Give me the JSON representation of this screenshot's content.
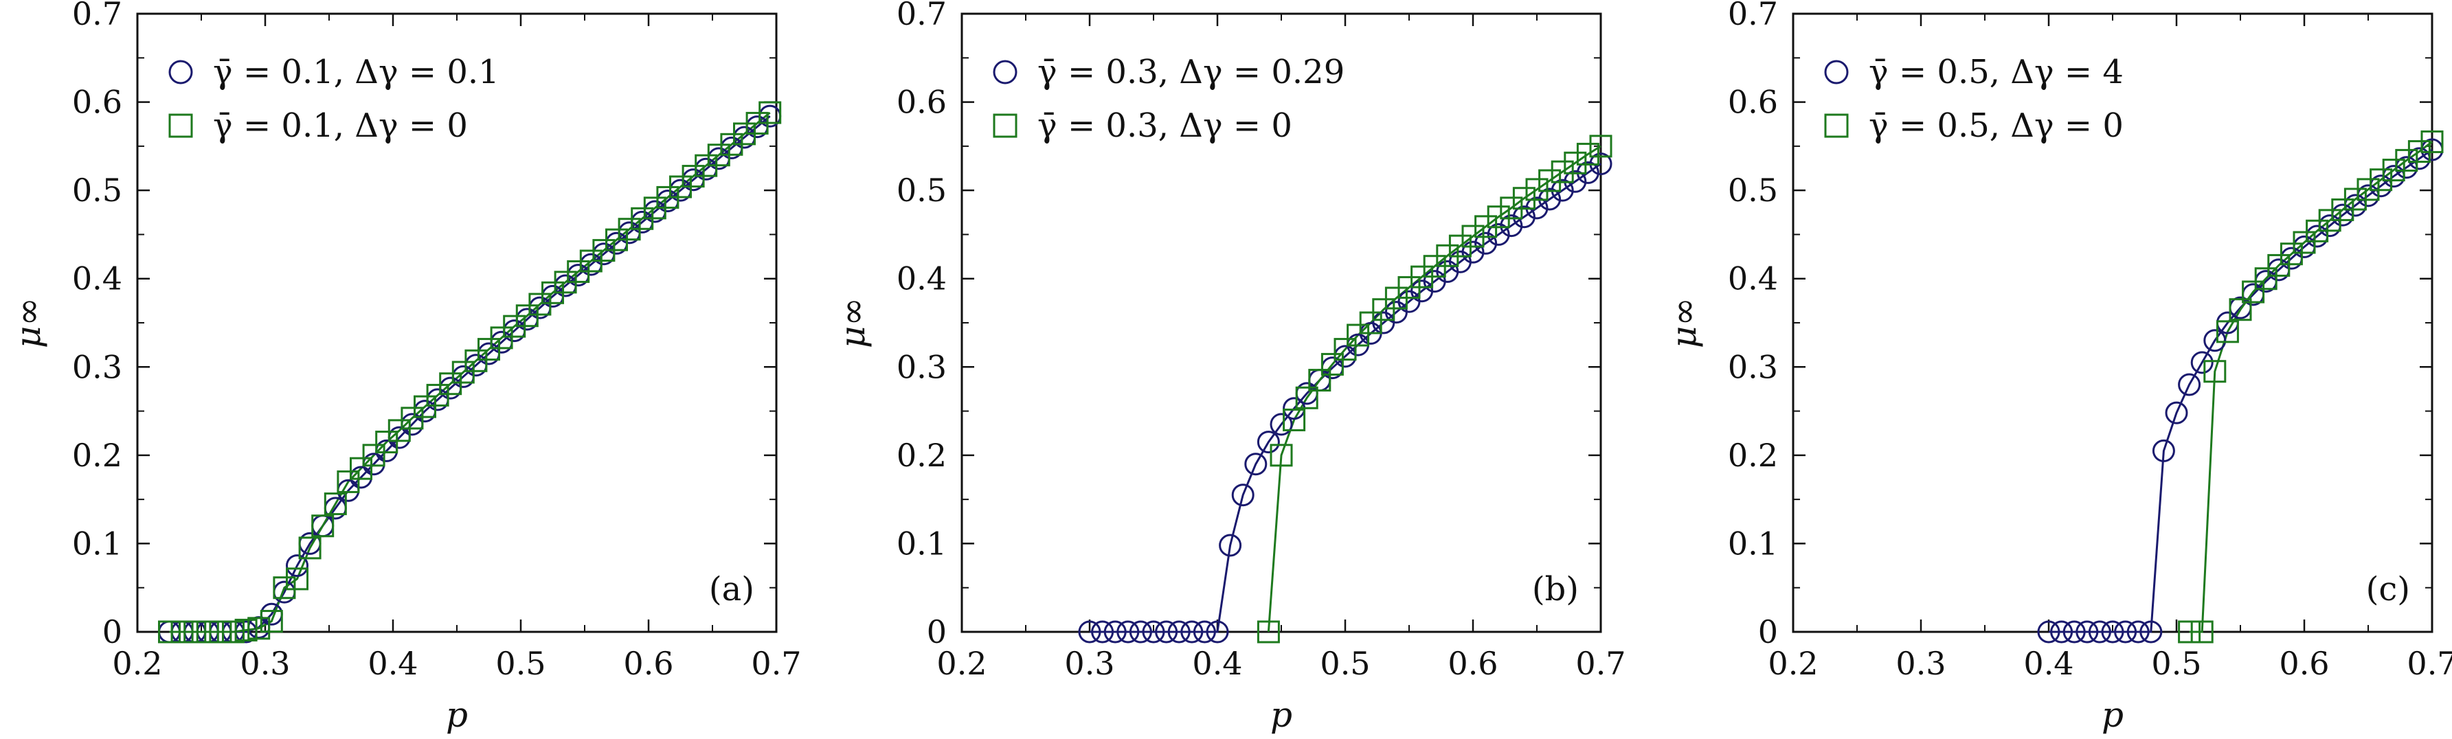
{
  "figure": {
    "series_styles": {
      "circle": {
        "marker": "circle",
        "color": "#1a1a6e"
      },
      "square": {
        "marker": "square",
        "color": "#1e7a1e"
      }
    }
  },
  "chart_data": [
    {
      "type": "scatter",
      "panel_label": "(a)",
      "xlabel": "p",
      "ylabel": "μ∞",
      "xlim": [
        0.2,
        0.7
      ],
      "ylim": [
        0,
        0.7
      ],
      "x_ticks": [
        0.2,
        0.3,
        0.4,
        0.5,
        0.6,
        0.7
      ],
      "x_tick_labels": [
        "0.2",
        "0.3",
        "0.4",
        "0.5",
        "0.6",
        "0.7"
      ],
      "y_ticks": [
        0,
        0.1,
        0.2,
        0.3,
        0.4,
        0.5,
        0.6,
        0.7
      ],
      "y_tick_labels": [
        "0",
        "0.1",
        "0.2",
        "0.3",
        "0.4",
        "0.5",
        "0.6",
        "0.7"
      ],
      "grid": false,
      "legend_position": "top-left",
      "series": [
        {
          "name": "γ̄ = 0.1,  Δγ = 0.1",
          "name_parts": {
            "gamma_bar": "γ̄",
            "gamma_value": "0.1",
            "delta": "Δγ",
            "delta_value": "0.1"
          },
          "marker": "circle",
          "color": "#1a1a6e",
          "x": [
            0.225,
            0.235,
            0.245,
            0.255,
            0.265,
            0.275,
            0.285,
            0.295,
            0.305,
            0.315,
            0.325,
            0.335,
            0.345,
            0.355,
            0.365,
            0.375,
            0.385,
            0.395,
            0.405,
            0.415,
            0.425,
            0.435,
            0.445,
            0.455,
            0.465,
            0.475,
            0.485,
            0.495,
            0.505,
            0.515,
            0.525,
            0.535,
            0.545,
            0.555,
            0.565,
            0.575,
            0.585,
            0.595,
            0.605,
            0.615,
            0.625,
            0.635,
            0.645,
            0.655,
            0.665,
            0.675,
            0.685,
            0.695
          ],
          "y": [
            0,
            0,
            0,
            0,
            0,
            0,
            0,
            0.005,
            0.02,
            0.045,
            0.075,
            0.1,
            0.12,
            0.14,
            0.16,
            0.175,
            0.19,
            0.205,
            0.22,
            0.235,
            0.25,
            0.263,
            0.276,
            0.289,
            0.302,
            0.315,
            0.328,
            0.341,
            0.354,
            0.367,
            0.38,
            0.392,
            0.404,
            0.416,
            0.428,
            0.44,
            0.452,
            0.464,
            0.476,
            0.488,
            0.5,
            0.512,
            0.524,
            0.536,
            0.548,
            0.56,
            0.572,
            0.584
          ]
        },
        {
          "name": "γ̄ = 0.1,  Δγ = 0",
          "name_parts": {
            "gamma_bar": "γ̄",
            "gamma_value": "0.1",
            "delta": "Δγ",
            "delta_value": "0"
          },
          "marker": "square",
          "color": "#1e7a1e",
          "x": [
            0.225,
            0.235,
            0.245,
            0.255,
            0.265,
            0.275,
            0.285,
            0.295,
            0.305,
            0.315,
            0.325,
            0.335,
            0.345,
            0.355,
            0.365,
            0.375,
            0.385,
            0.395,
            0.405,
            0.415,
            0.425,
            0.435,
            0.445,
            0.455,
            0.465,
            0.475,
            0.485,
            0.495,
            0.505,
            0.515,
            0.525,
            0.535,
            0.545,
            0.555,
            0.565,
            0.575,
            0.585,
            0.595,
            0.605,
            0.615,
            0.625,
            0.635,
            0.645,
            0.655,
            0.665,
            0.675,
            0.685,
            0.695
          ],
          "y": [
            0,
            0,
            0,
            0,
            0,
            0,
            0.002,
            0.004,
            0.012,
            0.05,
            0.06,
            0.095,
            0.12,
            0.145,
            0.17,
            0.185,
            0.2,
            0.215,
            0.228,
            0.242,
            0.255,
            0.268,
            0.281,
            0.294,
            0.307,
            0.32,
            0.333,
            0.346,
            0.358,
            0.371,
            0.384,
            0.396,
            0.408,
            0.42,
            0.432,
            0.444,
            0.456,
            0.468,
            0.48,
            0.492,
            0.504,
            0.516,
            0.528,
            0.54,
            0.552,
            0.564,
            0.576,
            0.588
          ]
        }
      ]
    },
    {
      "type": "scatter",
      "panel_label": "(b)",
      "xlabel": "p",
      "ylabel": "μ∞",
      "xlim": [
        0.2,
        0.7
      ],
      "ylim": [
        0,
        0.7
      ],
      "x_ticks": [
        0.2,
        0.3,
        0.4,
        0.5,
        0.6,
        0.7
      ],
      "x_tick_labels": [
        "0.2",
        "0.3",
        "0.4",
        "0.5",
        "0.6",
        "0.7"
      ],
      "y_ticks": [
        0,
        0.1,
        0.2,
        0.3,
        0.4,
        0.5,
        0.6,
        0.7
      ],
      "y_tick_labels": [
        "0",
        "0.1",
        "0.2",
        "0.3",
        "0.4",
        "0.5",
        "0.6",
        "0.7"
      ],
      "grid": false,
      "legend_position": "top-left",
      "series": [
        {
          "name": "γ̄ = 0.3,  Δγ = 0.29",
          "name_parts": {
            "gamma_bar": "γ̄",
            "gamma_value": "0.3",
            "delta": "Δγ",
            "delta_value": "0.29"
          },
          "marker": "circle",
          "color": "#1a1a6e",
          "x": [
            0.3,
            0.31,
            0.32,
            0.33,
            0.34,
            0.35,
            0.36,
            0.37,
            0.38,
            0.39,
            0.4,
            0.41,
            0.42,
            0.43,
            0.44,
            0.45,
            0.46,
            0.47,
            0.48,
            0.49,
            0.5,
            0.51,
            0.52,
            0.53,
            0.54,
            0.55,
            0.56,
            0.57,
            0.58,
            0.59,
            0.6,
            0.61,
            0.62,
            0.63,
            0.64,
            0.65,
            0.66,
            0.67,
            0.68,
            0.69,
            0.7
          ],
          "y": [
            0,
            0,
            0,
            0,
            0,
            0,
            0,
            0,
            0,
            0,
            0,
            0.098,
            0.155,
            0.19,
            0.215,
            0.235,
            0.253,
            0.27,
            0.285,
            0.299,
            0.312,
            0.325,
            0.338,
            0.35,
            0.362,
            0.374,
            0.386,
            0.397,
            0.408,
            0.419,
            0.43,
            0.44,
            0.45,
            0.46,
            0.47,
            0.48,
            0.49,
            0.5,
            0.51,
            0.52,
            0.53
          ]
        },
        {
          "name": "γ̄ = 0.3,  Δγ = 0",
          "name_parts": {
            "gamma_bar": "γ̄",
            "gamma_value": "0.3",
            "delta": "Δγ",
            "delta_value": "0"
          },
          "marker": "square",
          "color": "#1e7a1e",
          "x": [
            0.44,
            0.45,
            0.46,
            0.47,
            0.48,
            0.49,
            0.5,
            0.51,
            0.52,
            0.53,
            0.54,
            0.55,
            0.56,
            0.57,
            0.58,
            0.59,
            0.6,
            0.61,
            0.62,
            0.63,
            0.64,
            0.65,
            0.66,
            0.67,
            0.68,
            0.69,
            0.7
          ],
          "y": [
            0,
            0.2,
            0.24,
            0.265,
            0.285,
            0.303,
            0.32,
            0.336,
            0.35,
            0.365,
            0.378,
            0.39,
            0.402,
            0.414,
            0.426,
            0.437,
            0.448,
            0.459,
            0.47,
            0.48,
            0.491,
            0.501,
            0.511,
            0.521,
            0.531,
            0.541,
            0.55
          ]
        }
      ]
    },
    {
      "type": "scatter",
      "panel_label": "(c)",
      "xlabel": "p",
      "ylabel": "μ∞",
      "xlim": [
        0.2,
        0.7
      ],
      "ylim": [
        0,
        0.7
      ],
      "x_ticks": [
        0.2,
        0.3,
        0.4,
        0.5,
        0.6,
        0.7
      ],
      "x_tick_labels": [
        "0.2",
        "0.3",
        "0.4",
        "0.5",
        "0.6",
        "0.7"
      ],
      "y_ticks": [
        0,
        0.1,
        0.2,
        0.3,
        0.4,
        0.5,
        0.6,
        0.7
      ],
      "y_tick_labels": [
        "0",
        "0.1",
        "0.2",
        "0.3",
        "0.4",
        "0.5",
        "0.6",
        "0.7"
      ],
      "grid": false,
      "legend_position": "top-left",
      "series": [
        {
          "name": "γ̄ = 0.5,  Δγ = 4",
          "name_parts": {
            "gamma_bar": "γ̄",
            "gamma_value": "0.5",
            "delta": "Δγ",
            "delta_value": "4"
          },
          "marker": "circle",
          "color": "#1a1a6e",
          "x": [
            0.4,
            0.41,
            0.42,
            0.43,
            0.44,
            0.45,
            0.46,
            0.47,
            0.48,
            0.49,
            0.5,
            0.51,
            0.52,
            0.53,
            0.54,
            0.55,
            0.56,
            0.57,
            0.58,
            0.59,
            0.6,
            0.61,
            0.62,
            0.63,
            0.64,
            0.65,
            0.66,
            0.67,
            0.68,
            0.69,
            0.7
          ],
          "y": [
            0,
            0,
            0,
            0,
            0,
            0,
            0,
            0,
            0,
            0.205,
            0.248,
            0.28,
            0.305,
            0.33,
            0.35,
            0.367,
            0.382,
            0.397,
            0.41,
            0.423,
            0.436,
            0.448,
            0.46,
            0.472,
            0.483,
            0.494,
            0.505,
            0.516,
            0.526,
            0.536,
            0.546
          ]
        },
        {
          "name": "γ̄ = 0.5,  Δγ = 0",
          "name_parts": {
            "gamma_bar": "γ̄",
            "gamma_value": "0.5",
            "delta": "Δγ",
            "delta_value": "0"
          },
          "marker": "square",
          "color": "#1e7a1e",
          "x": [
            0.51,
            0.52,
            0.53,
            0.54,
            0.55,
            0.56,
            0.57,
            0.58,
            0.59,
            0.6,
            0.61,
            0.62,
            0.63,
            0.64,
            0.65,
            0.66,
            0.67,
            0.68,
            0.69,
            0.7
          ],
          "y": [
            0,
            0,
            0.295,
            0.34,
            0.365,
            0.385,
            0.4,
            0.415,
            0.428,
            0.441,
            0.454,
            0.466,
            0.478,
            0.49,
            0.501,
            0.512,
            0.523,
            0.534,
            0.544,
            0.555
          ]
        }
      ]
    }
  ]
}
